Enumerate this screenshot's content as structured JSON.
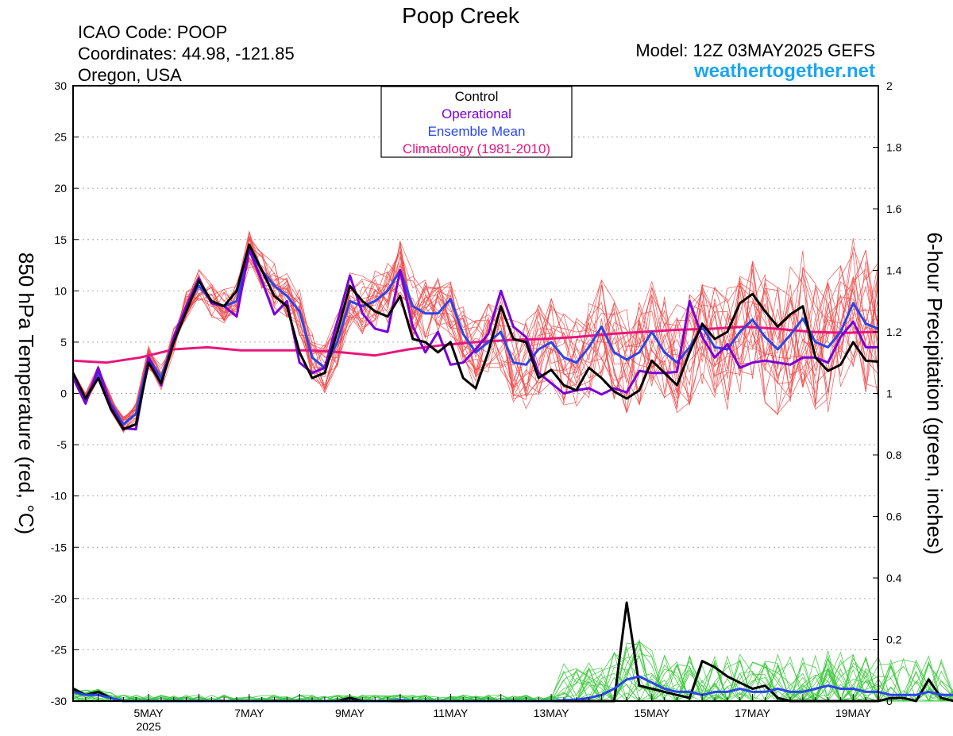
{
  "header": {
    "title": "Poop Creek",
    "icao": "ICAO Code: POOP",
    "coords": "Coordinates: 44.98, -121.85",
    "region": "Oregon, USA",
    "model": "Model: 12Z 03MAY2025 GEFS",
    "site": "weathertogether.net"
  },
  "colors": {
    "control": "#000000",
    "operational": "#7a00d6",
    "mean": "#2a45e8",
    "climatology": "#e8157c",
    "members_temp": "#ef4a4a",
    "members_precip": "#3cc83c",
    "site": "#1aa6f0"
  },
  "chart_data": {
    "type": "line",
    "x_axis": {
      "ticks": [
        {
          "day": 5,
          "label": "5MAY",
          "sub": "2025"
        },
        {
          "day": 7,
          "label": "7MAY",
          "sub": ""
        },
        {
          "day": 9,
          "label": "9MAY",
          "sub": ""
        },
        {
          "day": 11,
          "label": "11MAY",
          "sub": ""
        },
        {
          "day": 13,
          "label": "13MAY",
          "sub": ""
        },
        {
          "day": 15,
          "label": "15MAY",
          "sub": ""
        },
        {
          "day": 17,
          "label": "17MAY",
          "sub": ""
        },
        {
          "day": 19,
          "label": "19MAY",
          "sub": ""
        }
      ],
      "range_days": [
        3.5,
        19.5
      ],
      "step_hours": 6
    },
    "y_left": {
      "label": "850 hPa Temperature (red, °C)",
      "range": [
        -30,
        30
      ],
      "ticks": [
        "-30",
        "-25",
        "-20",
        "-15",
        "-10",
        "-5",
        "0",
        "5",
        "10",
        "15",
        "20",
        "25",
        "30"
      ]
    },
    "y_right": {
      "label": "6-hour Precipitation (green, inches)",
      "range": [
        0,
        2
      ],
      "ticks": [
        "0",
        "0.2",
        "0.4",
        "0.6",
        "0.8",
        "1",
        "1.2",
        "1.4",
        "1.6",
        "1.8",
        "2"
      ]
    },
    "grid": "dotted horizontal",
    "legend": {
      "position": "top-center",
      "entries": [
        "Control",
        "Operational",
        "Ensemble Mean",
        "Climatology (1981-2010)"
      ]
    },
    "series": [
      {
        "name": "Control",
        "axis": "left",
        "values": [
          2,
          -0.5,
          1.5,
          -1.5,
          -3.5,
          -3,
          3,
          1,
          5,
          8,
          11,
          9,
          8.5,
          10,
          14.5,
          12,
          9.5,
          8.5,
          4,
          1.5,
          2,
          6,
          10.5,
          9,
          8,
          7.5,
          9.5,
          5.3,
          5,
          4,
          5,
          1.5,
          0.5,
          4,
          8.5,
          5.3,
          5,
          1.5,
          2.3,
          0.8,
          0.3,
          2.5,
          1.5,
          0.2,
          -0.5,
          0.3,
          3.2,
          2,
          0.8,
          4,
          6.8,
          5.3,
          6,
          8.8,
          9.7,
          8,
          6.5,
          7.7,
          8.5,
          3.5,
          2.2,
          2.8,
          5,
          3.2,
          3.1
        ]
      },
      {
        "name": "Operational",
        "axis": "left",
        "values": [
          1.5,
          -1,
          2.5,
          -1.2,
          -3.4,
          -3.5,
          3.5,
          0.8,
          5.5,
          8.5,
          11.2,
          8.8,
          8.5,
          7.5,
          14,
          11,
          7.7,
          9,
          3,
          2,
          2.5,
          7,
          11.5,
          7.8,
          6.3,
          6,
          12,
          6.5,
          4,
          6,
          2.8,
          3,
          4.3,
          5.8,
          10,
          6.5,
          5.5,
          2,
          1,
          0,
          0.3,
          0.5,
          -0.1,
          0.5,
          0.1,
          2.2,
          2,
          2,
          2.1,
          9,
          5.5,
          3.5,
          4.8,
          2.5,
          3,
          3.2,
          3,
          2.8,
          3.5,
          3.5,
          3,
          5.5,
          7,
          4.5,
          4.5
        ]
      },
      {
        "name": "Ensemble Mean",
        "axis": "left",
        "values": [
          1.8,
          -0.5,
          2,
          -1,
          -3,
          -2,
          3.5,
          1.5,
          5.2,
          8.5,
          10.5,
          9,
          8.5,
          9,
          14,
          12,
          10.5,
          9.5,
          8,
          3.5,
          2.5,
          5,
          9,
          8.5,
          9,
          10,
          12,
          8.5,
          7.8,
          7.8,
          9.2,
          5.8,
          4,
          5,
          6,
          3,
          2.8,
          4.3,
          5,
          3.5,
          3,
          4.5,
          6.5,
          4,
          3.3,
          4,
          6,
          4,
          3,
          4.5,
          6.5,
          4.5,
          4.3,
          6,
          7.2,
          5.5,
          4.3,
          5.7,
          7.3,
          5,
          4.5,
          6,
          8.8,
          6.8,
          6.3
        ]
      },
      {
        "name": "Climatology (1981-2010)",
        "axis": "left",
        "values": [
          3.2,
          3,
          3.5,
          4.3,
          4.5,
          4.2,
          4.2,
          4.2,
          4,
          3.7,
          4.3,
          4.7,
          5,
          5.2,
          5.3,
          5.5,
          5.8,
          6,
          6.2,
          6.3,
          6.5,
          6.3,
          6,
          5.9,
          6
        ]
      },
      {
        "name": "Control precipitation",
        "axis": "right",
        "values": [
          0.04,
          0.02,
          0.03,
          0.01,
          0,
          0,
          0,
          0,
          0,
          0,
          0,
          0,
          0,
          0,
          0,
          0,
          0,
          0,
          0,
          0,
          0,
          0,
          0.01,
          0,
          0,
          0,
          0,
          0,
          0,
          0,
          0,
          0,
          0,
          0,
          0,
          0,
          0,
          0,
          0,
          0,
          0,
          0,
          0,
          0,
          0.32,
          0.05,
          0.04,
          0.03,
          0.02,
          0.01,
          0.13,
          0.11,
          0.08,
          0.06,
          0.04,
          0.05,
          0.01,
          0,
          0,
          0,
          0,
          0,
          0,
          0,
          0,
          0.01,
          0.01,
          0,
          0.07,
          0.01,
          0,
          0,
          0.02,
          0.02,
          0
        ]
      },
      {
        "name": "Ensemble mean precipitation",
        "axis": "right",
        "values": [
          0.03,
          0.02,
          0.02,
          0.01,
          0,
          0,
          0,
          0,
          0,
          0,
          0,
          0,
          0,
          0,
          0,
          0,
          0,
          0,
          0,
          0,
          0,
          0,
          0,
          0,
          0,
          0,
          0.003,
          0,
          0,
          0,
          0,
          0,
          0,
          0,
          0,
          0,
          0,
          0,
          0,
          0.003,
          0.005,
          0.01,
          0.02,
          0.04,
          0.07,
          0.08,
          0.06,
          0.04,
          0.03,
          0.03,
          0.02,
          0.03,
          0.03,
          0.04,
          0.03,
          0.03,
          0.04,
          0.03,
          0.03,
          0.04,
          0.05,
          0.04,
          0.04,
          0.03,
          0.03,
          0.02,
          0.02,
          0.02,
          0.03,
          0.02,
          0.02,
          0
        ]
      }
    ]
  }
}
